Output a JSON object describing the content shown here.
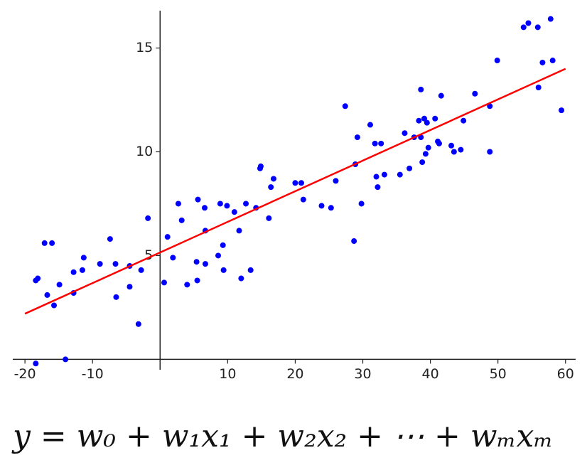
{
  "chart_data": {
    "type": "scatter",
    "xlim": [
      -21.8,
      61.5
    ],
    "ylim": [
      -0.5,
      16.8
    ],
    "xticks": [
      -20,
      -10,
      10,
      20,
      30,
      40,
      50,
      60
    ],
    "yticks": [
      5,
      10,
      15
    ],
    "series": [
      {
        "type": "scatter",
        "color": "#0000ff",
        "x": [
          -18.4,
          -18.1,
          -18.4,
          -17.1,
          -16.0,
          -16.7,
          -15.7,
          -14.9,
          -14.0,
          -12.8,
          -12.8,
          -11.5,
          -11.3,
          -8.9,
          -7.4,
          -6.6,
          -6.5,
          -4.5,
          -4.5,
          -3.2,
          -2.8,
          -1.8,
          0.6,
          1.1,
          1.9,
          2.7,
          3.2,
          4.0,
          5.4,
          5.5,
          5.6,
          6.6,
          6.7,
          6.7,
          8.6,
          8.9,
          9.3,
          9.4,
          9.9,
          11.0,
          11.7,
          12.0,
          12.7,
          13.4,
          14.2,
          14.8,
          14.9,
          16.1,
          16.4,
          16.8,
          20.0,
          20.9,
          21.2,
          23.9,
          25.3,
          26.0,
          27.4,
          28.7,
          28.9,
          29.2,
          29.8,
          31.1,
          31.8,
          32.0,
          32.2,
          32.7,
          33.2,
          35.5,
          36.2,
          36.9,
          37.6,
          38.3,
          38.6,
          38.6,
          38.8,
          39.1,
          39.3,
          39.5,
          39.7,
          40.7,
          41.1,
          41.3,
          41.6,
          43.1,
          43.5,
          44.5,
          44.9,
          46.6,
          48.8,
          48.8,
          49.9,
          53.8,
          54.5,
          55.9,
          56.0,
          56.6,
          57.8,
          58.1,
          59.4
        ],
        "y": [
          3.8,
          3.9,
          -0.2,
          5.6,
          5.6,
          3.1,
          2.6,
          3.6,
          0.0,
          3.2,
          4.2,
          4.3,
          4.9,
          4.6,
          5.8,
          4.6,
          3.0,
          4.5,
          3.5,
          1.7,
          4.3,
          6.8,
          3.7,
          5.9,
          4.9,
          7.5,
          6.7,
          3.6,
          4.7,
          3.8,
          7.7,
          7.3,
          4.6,
          6.2,
          5.0,
          7.5,
          5.5,
          4.3,
          7.4,
          7.1,
          6.2,
          3.9,
          7.5,
          4.3,
          7.3,
          9.2,
          9.3,
          6.8,
          8.3,
          8.7,
          8.5,
          8.5,
          7.7,
          7.4,
          7.3,
          8.6,
          12.2,
          5.7,
          9.4,
          10.7,
          7.5,
          11.3,
          10.4,
          8.8,
          8.3,
          10.4,
          8.9,
          8.9,
          10.9,
          9.2,
          10.7,
          11.5,
          10.7,
          13.0,
          9.5,
          11.6,
          9.9,
          11.4,
          10.2,
          11.6,
          10.5,
          10.4,
          12.7,
          10.3,
          10.0,
          10.1,
          11.5,
          12.8,
          10.0,
          12.2,
          14.4,
          16.0,
          16.2,
          16.0,
          13.1,
          14.3,
          16.4,
          14.4,
          12.0
        ]
      },
      {
        "type": "line",
        "color": "#ff0000",
        "x": [
          -20,
          60
        ],
        "y": [
          2.2,
          14.0
        ]
      }
    ],
    "formula": "y = w₀ + w₁x₁ + w₂x₂ + ⋯ + wₘxₘ"
  }
}
